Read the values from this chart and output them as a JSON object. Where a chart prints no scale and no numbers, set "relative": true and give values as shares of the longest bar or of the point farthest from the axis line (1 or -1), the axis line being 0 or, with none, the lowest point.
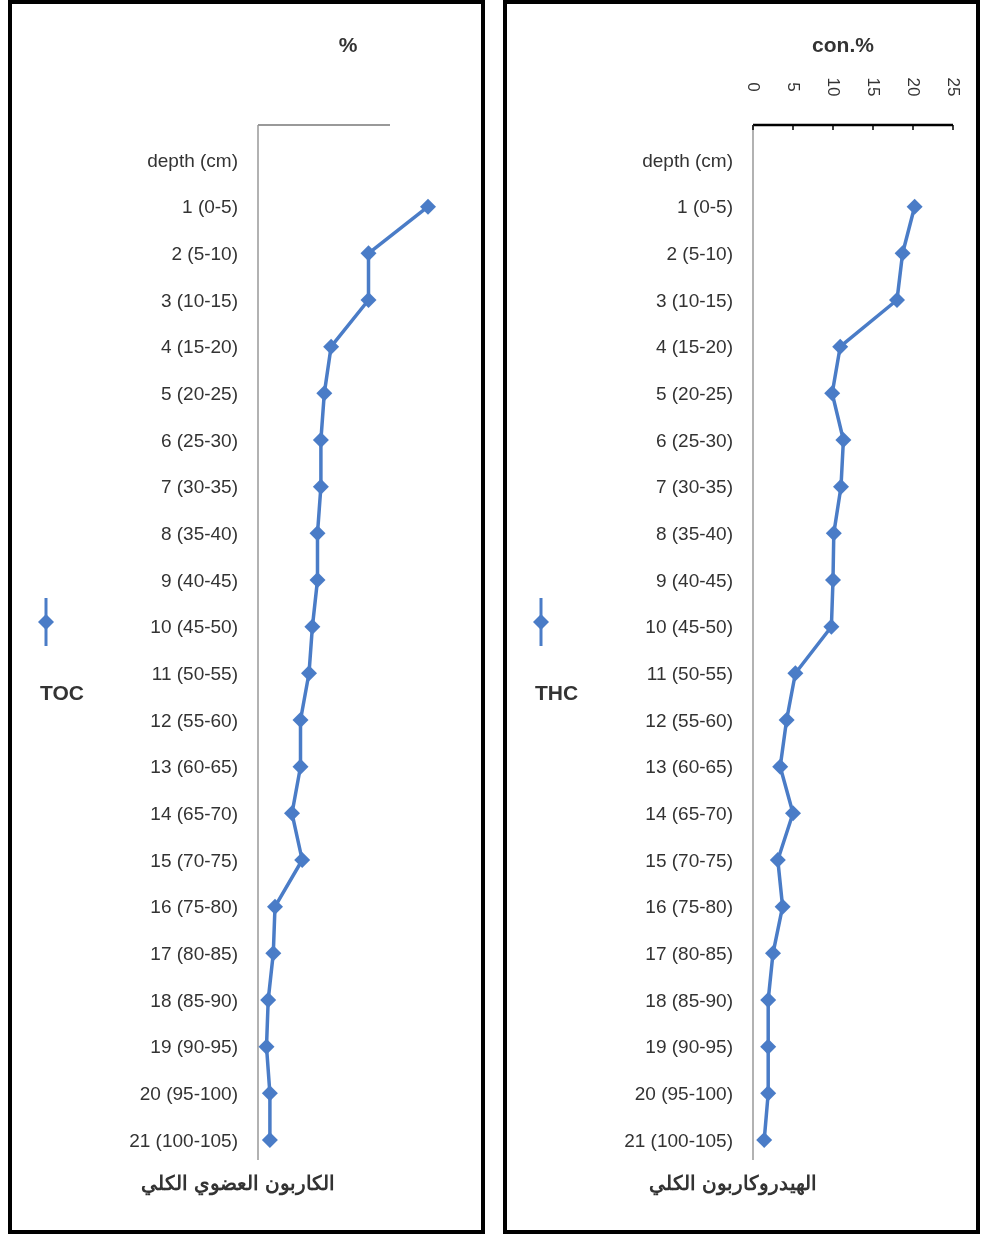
{
  "chart_data": [
    {
      "type": "line",
      "orientation": "horizontal",
      "relative": true,
      "title": "الكاربون العضوي الكلي",
      "xlabel": "%",
      "categories": [
        "depth (cm)",
        "1 (0-5)",
        "2 (5-10)",
        "3 (10-15)",
        "4 (15-20)",
        "5 (20-25)",
        "6 (25-30)",
        "7 (30-35)",
        "8 (35-40)",
        "9 (40-45)",
        "10 (45-50)",
        "11 (50-55)",
        "12 (55-60)",
        "13 (60-65)",
        "14 (65-70)",
        "15 (70-75)",
        "16 (75-80)",
        "17 (80-85)",
        "18 (85-90)",
        "19 (90-95)",
        "20 (95-100)",
        "21 (100-105)"
      ],
      "series": [
        {
          "name": "TOC",
          "color": "#4a7cc7",
          "values": [
            null,
            1,
            0.65,
            0.65,
            0.43,
            0.39,
            0.37,
            0.37,
            0.35,
            0.35,
            0.32,
            0.3,
            0.25,
            0.25,
            0.2,
            0.26,
            0.1,
            0.09,
            0.06,
            0.05,
            0.07,
            0.07
          ]
        }
      ],
      "marker": "diamond",
      "legend": "left"
    },
    {
      "type": "line",
      "orientation": "horizontal",
      "title": "الهيدروكاربون الكلي",
      "xlabel": "con.%",
      "xlim": [
        0,
        25
      ],
      "xticks": [
        0,
        5,
        10,
        15,
        20,
        25
      ],
      "categories": [
        "depth (cm)",
        "1 (0-5)",
        "2 (5-10)",
        "3 (10-15)",
        "4 (15-20)",
        "5 (20-25)",
        "6 (25-30)",
        "7 (30-35)",
        "8 (35-40)",
        "9 (40-45)",
        "10 (45-50)",
        "11 (50-55)",
        "12 (55-60)",
        "13 (60-65)",
        "14 (65-70)",
        "15 (70-75)",
        "16 (75-80)",
        "17 (80-85)",
        "18 (85-90)",
        "19 (90-95)",
        "20 (95-100)",
        "21 (100-105)"
      ],
      "series": [
        {
          "name": "THC",
          "color": "#4a7cc7",
          "values": [
            null,
            20.2,
            18.7,
            18.0,
            10.9,
            9.9,
            11.3,
            11.0,
            10.1,
            10.0,
            9.8,
            5.3,
            4.2,
            3.4,
            5.0,
            3.1,
            3.7,
            2.5,
            1.9,
            1.9,
            1.9,
            1.4
          ]
        }
      ],
      "marker": "diamond",
      "legend": "left"
    }
  ]
}
